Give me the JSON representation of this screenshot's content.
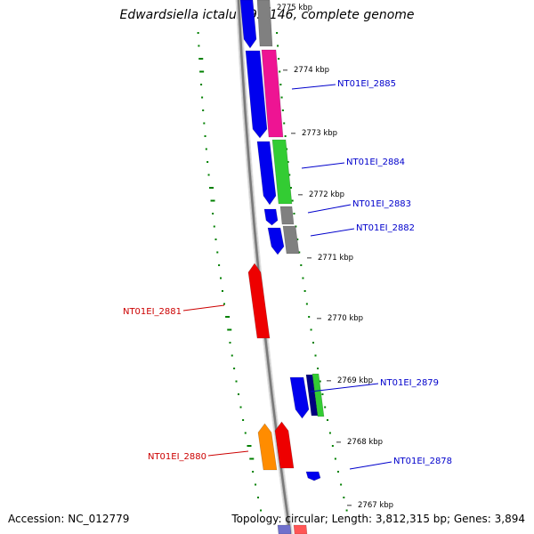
{
  "title": "Edwardsiella ictaluri 93-146, complete genome",
  "footer": {
    "accession_label": "Accession: NC_012779",
    "summary": "Topology: circular; Length: 3,812,315 bp; Genes: 3,894"
  },
  "kbp_markers": [
    "2775 kbp",
    "2774 kbp",
    "2773 kbp",
    "2772 kbp",
    "2771 kbp",
    "2770 kbp",
    "2769 kbp",
    "2768 kbp",
    "2767 kbp"
  ],
  "gene_labels": [
    {
      "name": "NT01EI_2885",
      "strand": "forward"
    },
    {
      "name": "NT01EI_2884",
      "strand": "forward"
    },
    {
      "name": "NT01EI_2883",
      "strand": "forward"
    },
    {
      "name": "NT01EI_2882",
      "strand": "forward"
    },
    {
      "name": "NT01EI_2881",
      "strand": "reverse"
    },
    {
      "name": "NT01EI_2879",
      "strand": "forward"
    },
    {
      "name": "NT01EI_2880",
      "strand": "reverse"
    },
    {
      "name": "NT01EI_2878",
      "strand": "forward"
    }
  ],
  "colors": {
    "forward_label": "#0000cc",
    "reverse_label": "#cc0000",
    "blue": "#0000ee",
    "magenta": "#ee1493",
    "green": "#33cc33",
    "gray": "#808080",
    "red": "#ee0000",
    "orange": "#ff8c00",
    "navy": "#000080",
    "dots": "#008000"
  }
}
